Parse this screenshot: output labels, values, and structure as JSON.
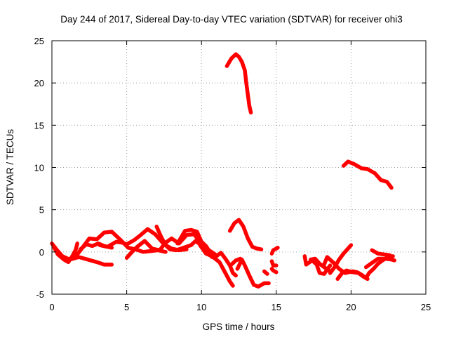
{
  "chart_data": {
    "type": "scatter",
    "title": "Day 244 of 2017, Sidereal Day-to-day VTEC variation (SDTVAR) for receiver ohi3",
    "xlabel": "GPS time / hours",
    "ylabel": "SDTVAR / TECUs",
    "xlim": [
      0,
      25
    ],
    "ylim": [
      -5,
      25
    ],
    "xticks": [
      0,
      5,
      10,
      15,
      20,
      25
    ],
    "yticks": [
      -5,
      0,
      5,
      10,
      15,
      20,
      25
    ],
    "xtick_labels": [
      "0",
      "5",
      "10",
      "15",
      "20",
      "25"
    ],
    "ytick_labels": [
      "-5",
      "0",
      "5",
      "10",
      "15",
      "20",
      "25"
    ],
    "grid": true,
    "marker": "+",
    "color": "#ff0000",
    "series": [
      {
        "name": "arc-high-1",
        "points": [
          [
            11.7,
            22.0
          ],
          [
            12.0,
            22.9
          ],
          [
            12.3,
            23.4
          ],
          [
            12.5,
            23.1
          ],
          [
            12.7,
            22.5
          ],
          [
            12.9,
            21.5
          ],
          [
            13.0,
            19.9
          ],
          [
            13.1,
            18.6
          ],
          [
            13.2,
            17.3
          ],
          [
            13.3,
            16.5
          ]
        ]
      },
      {
        "name": "arc-high-2",
        "points": [
          [
            19.5,
            10.2
          ],
          [
            19.8,
            10.7
          ],
          [
            20.2,
            10.4
          ],
          [
            20.7,
            9.9
          ],
          [
            21.1,
            9.8
          ],
          [
            21.6,
            9.3
          ],
          [
            22.0,
            8.5
          ],
          [
            22.4,
            8.3
          ],
          [
            22.7,
            7.6
          ]
        ]
      },
      {
        "name": "arc-a",
        "points": [
          [
            0.0,
            1.0
          ],
          [
            0.3,
            0.3
          ],
          [
            0.7,
            -0.5
          ],
          [
            1.2,
            -0.9
          ],
          [
            1.8,
            -0.6
          ],
          [
            2.4,
            -0.9
          ],
          [
            3.0,
            -1.2
          ],
          [
            3.5,
            -1.5
          ],
          [
            4.0,
            -1.5
          ]
        ]
      },
      {
        "name": "arc-b",
        "points": [
          [
            0.1,
            0.7
          ],
          [
            0.4,
            -0.3
          ],
          [
            0.8,
            -0.9
          ],
          [
            1.1,
            -1.2
          ],
          [
            1.4,
            -0.4
          ],
          [
            1.6,
            0.3
          ],
          [
            1.7,
            1.0
          ]
        ]
      },
      {
        "name": "arc-c",
        "points": [
          [
            1.9,
            0.3
          ],
          [
            2.3,
            0.9
          ],
          [
            2.7,
            0.7
          ],
          [
            3.1,
            1.0
          ],
          [
            3.5,
            0.7
          ],
          [
            4.0,
            0.5
          ]
        ]
      },
      {
        "name": "arc-d",
        "points": [
          [
            1.6,
            -0.5
          ],
          [
            2.0,
            0.4
          ],
          [
            2.5,
            1.6
          ],
          [
            3.0,
            1.5
          ],
          [
            3.5,
            2.3
          ],
          [
            4.0,
            2.4
          ],
          [
            4.6,
            1.4
          ],
          [
            5.1,
            0.5
          ],
          [
            5.6,
            0.3
          ],
          [
            6.1,
            0.0
          ],
          [
            6.6,
            0.1
          ],
          [
            7.1,
            0.2
          ],
          [
            7.6,
            0.0
          ]
        ]
      },
      {
        "name": "arc-e",
        "points": [
          [
            3.2,
            0.8
          ],
          [
            3.7,
            0.6
          ],
          [
            4.3,
            1.2
          ],
          [
            4.7,
            1.1
          ],
          [
            5.0,
            0.9
          ],
          [
            5.5,
            1.4
          ],
          [
            6.0,
            2.1
          ],
          [
            6.4,
            2.7
          ],
          [
            6.9,
            2.1
          ],
          [
            7.5,
            0.9
          ],
          [
            8.0,
            0.4
          ],
          [
            8.5,
            0.2
          ],
          [
            9.0,
            0.3
          ]
        ]
      },
      {
        "name": "arc-f",
        "points": [
          [
            5.0,
            -0.7
          ],
          [
            5.3,
            -0.1
          ],
          [
            5.7,
            0.6
          ],
          [
            6.2,
            1.3
          ],
          [
            6.7,
            0.4
          ],
          [
            7.2,
            0.2
          ],
          [
            7.6,
            1.1
          ],
          [
            8.0,
            1.6
          ],
          [
            8.5,
            1.0
          ],
          [
            9.0,
            2.0
          ],
          [
            9.5,
            2.1
          ],
          [
            10.0,
            1.0
          ],
          [
            10.5,
            0.2
          ],
          [
            11.0,
            -0.4
          ]
        ]
      },
      {
        "name": "arc-g",
        "points": [
          [
            7.0,
            3.0
          ],
          [
            7.3,
            1.8
          ],
          [
            7.6,
            0.8
          ],
          [
            7.9,
            0.3
          ],
          [
            8.3,
            0.2
          ],
          [
            8.8,
            0.5
          ],
          [
            9.3,
            0.8
          ],
          [
            9.6,
            1.3
          ],
          [
            10.0,
            0.8
          ],
          [
            10.3,
            0.2
          ],
          [
            10.7,
            -0.6
          ],
          [
            11.0,
            -0.5
          ],
          [
            11.3,
            -0.1
          ],
          [
            11.6,
            -0.8
          ],
          [
            11.9,
            -1.6
          ],
          [
            12.1,
            -2.5
          ],
          [
            12.3,
            -2.8
          ]
        ]
      },
      {
        "name": "arc-h",
        "points": [
          [
            8.4,
            1.0
          ],
          [
            8.9,
            2.5
          ],
          [
            9.3,
            2.6
          ],
          [
            9.7,
            2.4
          ],
          [
            10.0,
            1.2
          ],
          [
            10.3,
            0.7
          ],
          [
            10.6,
            -0.1
          ],
          [
            10.9,
            -0.7
          ]
        ]
      },
      {
        "name": "arc-i",
        "points": [
          [
            9.6,
            2.3
          ],
          [
            9.9,
            0.8
          ],
          [
            10.3,
            -0.2
          ],
          [
            10.7,
            -0.5
          ],
          [
            11.2,
            -1.2
          ],
          [
            11.6,
            -2.5
          ],
          [
            11.9,
            -3.5
          ],
          [
            12.1,
            -4.0
          ]
        ]
      },
      {
        "name": "arc-j",
        "points": [
          [
            11.9,
            2.5
          ],
          [
            12.2,
            3.4
          ],
          [
            12.5,
            3.8
          ],
          [
            12.8,
            3.0
          ],
          [
            13.1,
            1.6
          ],
          [
            13.4,
            0.6
          ],
          [
            13.7,
            0.4
          ],
          [
            14.0,
            0.3
          ]
        ]
      },
      {
        "name": "arc-k",
        "points": [
          [
            12.4,
            -2.0
          ],
          [
            12.7,
            -0.9
          ],
          [
            12.9,
            -1.6
          ],
          [
            13.2,
            -2.8
          ],
          [
            13.5,
            -3.9
          ],
          [
            13.8,
            -4.1
          ],
          [
            14.2,
            -3.7
          ],
          [
            14.5,
            -3.7
          ]
        ]
      },
      {
        "name": "arc-l",
        "points": [
          [
            12.0,
            -1.5
          ],
          [
            12.3,
            -1.0
          ],
          [
            12.6,
            -0.8
          ]
        ]
      },
      {
        "name": "arc-m",
        "points": [
          [
            14.2,
            -2.3
          ],
          [
            14.4,
            -2.6
          ]
        ]
      },
      {
        "name": "arc-n",
        "points": [
          [
            14.7,
            -0.2
          ],
          [
            14.8,
            0.2
          ],
          [
            15.0,
            0.4
          ],
          [
            15.1,
            0.5
          ]
        ]
      },
      {
        "name": "arc-o",
        "points": [
          [
            14.7,
            -1.1
          ],
          [
            14.8,
            -1.6
          ],
          [
            15.0,
            -1.6
          ]
        ]
      },
      {
        "name": "arc-p",
        "points": [
          [
            14.7,
            -2.0
          ],
          [
            14.8,
            -2.2
          ],
          [
            15.0,
            -2.4
          ]
        ]
      },
      {
        "name": "arc-q",
        "points": [
          [
            16.9,
            -0.5
          ],
          [
            17.0,
            -1.5
          ],
          [
            17.4,
            -1.0
          ],
          [
            17.7,
            -1.5
          ],
          [
            17.9,
            -2.5
          ],
          [
            18.2,
            -2.6
          ],
          [
            18.6,
            -1.6
          ]
        ]
      },
      {
        "name": "arc-r",
        "points": [
          [
            17.3,
            -0.9
          ],
          [
            17.6,
            -0.8
          ],
          [
            17.9,
            -1.4
          ],
          [
            18.2,
            -1.8
          ],
          [
            18.6,
            -2.3
          ]
        ]
      },
      {
        "name": "arc-s",
        "points": [
          [
            18.6,
            -2.5
          ],
          [
            18.9,
            -1.8
          ],
          [
            19.2,
            -0.9
          ],
          [
            19.5,
            -0.2
          ],
          [
            19.8,
            0.4
          ],
          [
            20.0,
            0.8
          ]
        ]
      },
      {
        "name": "arc-t",
        "points": [
          [
            18.2,
            -1.5
          ],
          [
            18.4,
            -0.6
          ],
          [
            18.9,
            -1.4
          ],
          [
            19.2,
            -2.0
          ],
          [
            19.6,
            -2.5
          ],
          [
            20.1,
            -2.3
          ],
          [
            20.4,
            -2.4
          ],
          [
            20.7,
            -2.7
          ],
          [
            21.0,
            -3.1
          ],
          [
            21.2,
            -2.5
          ],
          [
            21.5,
            -2.0
          ],
          [
            21.8,
            -1.4
          ],
          [
            22.1,
            -1.0
          ],
          [
            22.5,
            -0.6
          ],
          [
            22.8,
            -0.5
          ]
        ]
      },
      {
        "name": "arc-u",
        "points": [
          [
            19.1,
            -3.2
          ],
          [
            19.4,
            -2.5
          ],
          [
            19.7,
            -2.2
          ],
          [
            20.1,
            -2.4
          ],
          [
            20.5,
            -2.5
          ],
          [
            20.8,
            -2.9
          ],
          [
            21.1,
            -3.2
          ]
        ]
      },
      {
        "name": "arc-v",
        "points": [
          [
            21.0,
            -1.8
          ],
          [
            21.4,
            -1.3
          ],
          [
            21.8,
            -0.8
          ],
          [
            22.3,
            -0.8
          ],
          [
            22.7,
            -0.9
          ],
          [
            22.9,
            -1.0
          ]
        ]
      },
      {
        "name": "arc-w",
        "points": [
          [
            21.4,
            0.2
          ],
          [
            21.8,
            -0.2
          ],
          [
            22.2,
            -0.3
          ],
          [
            22.6,
            -0.4
          ]
        ]
      }
    ]
  }
}
